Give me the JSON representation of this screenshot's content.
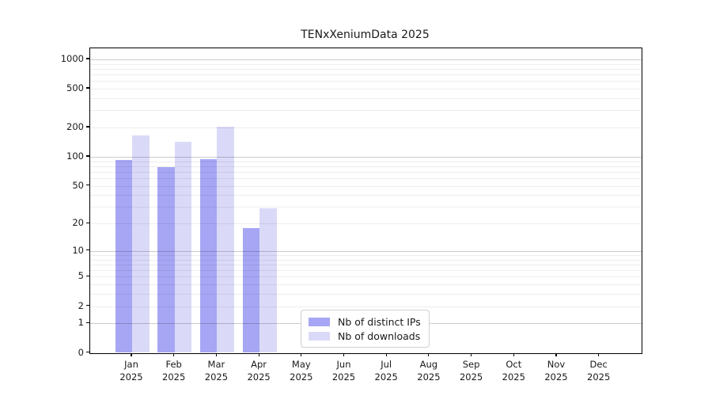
{
  "chart_data": {
    "type": "bar",
    "title": "TENxXeniumData 2025",
    "year_label": "2025",
    "categories": [
      "Jan",
      "Feb",
      "Mar",
      "Apr",
      "May",
      "Jun",
      "Jul",
      "Aug",
      "Sep",
      "Oct",
      "Nov",
      "Dec"
    ],
    "series": [
      {
        "name": "Nb of distinct IPs",
        "color": "#a6a6f4",
        "values": [
          92,
          78,
          94,
          18,
          null,
          null,
          null,
          null,
          null,
          null,
          null,
          null
        ]
      },
      {
        "name": "Nb of downloads",
        "color": "#dadaf8",
        "values": [
          167,
          144,
          204,
          29,
          null,
          null,
          null,
          null,
          null,
          null,
          null,
          null
        ]
      }
    ],
    "y_ticks": [
      0,
      1,
      2,
      5,
      10,
      20,
      50,
      100,
      200,
      500,
      1000
    ],
    "y_scale": "log10(value+1)",
    "ylim": [
      0,
      1300
    ],
    "xlabel": "",
    "ylabel": "",
    "grid": {
      "major_color": "rgba(0,0,0,0.20)",
      "minor_color": "rgba(0,0,0,0.07)"
    },
    "legend": {
      "position": "lower-center"
    },
    "axis_color": "#000000",
    "text_color": "#1a1a1a",
    "background": "#ffffff"
  }
}
